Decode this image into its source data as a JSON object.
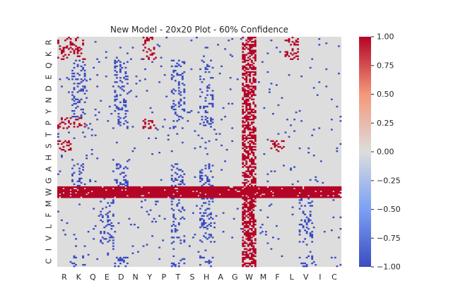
{
  "chart_data": {
    "type": "heatmap",
    "title": "New Model - 20x20 Plot - 60% Confidence",
    "x_tick_labels": [
      "R",
      "K",
      "Q",
      "E",
      "D",
      "N",
      "Y",
      "P",
      "T",
      "S",
      "H",
      "A",
      "G",
      "W",
      "M",
      "F",
      "L",
      "V",
      "I",
      "C"
    ],
    "y_tick_labels": [
      "R",
      "K",
      "Q",
      "E",
      "D",
      "N",
      "Y",
      "P",
      "T",
      "S",
      "H",
      "A",
      "G",
      "W",
      "M",
      "F",
      "L",
      "V",
      "I",
      "C"
    ],
    "grid": false,
    "colorbar": {
      "vmin": -1.0,
      "vmax": 1.0,
      "ticks": [
        "1.00",
        "0.75",
        "0.50",
        "0.25",
        "0.00",
        "−0.25",
        "−0.50",
        "−0.75",
        "−1.00"
      ],
      "colormap": "coolwarm",
      "colors": {
        "low": "#3b4cc0",
        "mid": "#dddddd",
        "high": "#b40426"
      }
    },
    "background_value": 0.0,
    "dominant_positive_rows": [
      "W"
    ],
    "dominant_positive_cols": [
      "W"
    ],
    "positive_patches": [
      {
        "row": "R",
        "cols": [
          "R",
          "K",
          "Y",
          "L"
        ]
      },
      {
        "row": "K",
        "cols": [
          "R",
          "K",
          "Y",
          "L"
        ]
      },
      {
        "row": "P",
        "cols": [
          "R",
          "K",
          "Y"
        ]
      },
      {
        "row": "S",
        "cols": [
          "R",
          "F"
        ]
      }
    ],
    "negative_patches": [
      {
        "rows": [
          "Q",
          "E",
          "D",
          "N",
          "Y",
          "P"
        ],
        "cols": [
          "K",
          "D",
          "T",
          "H"
        ]
      },
      {
        "rows": [
          "A",
          "G"
        ],
        "cols": [
          "K",
          "D",
          "T",
          "H"
        ]
      },
      {
        "rows": [
          "M",
          "F",
          "L",
          "V"
        ],
        "cols": [
          "E",
          "T",
          "H",
          "V"
        ]
      },
      {
        "rows": [
          "C"
        ],
        "cols": [
          "K",
          "D",
          "T",
          "H",
          "V"
        ]
      }
    ]
  }
}
